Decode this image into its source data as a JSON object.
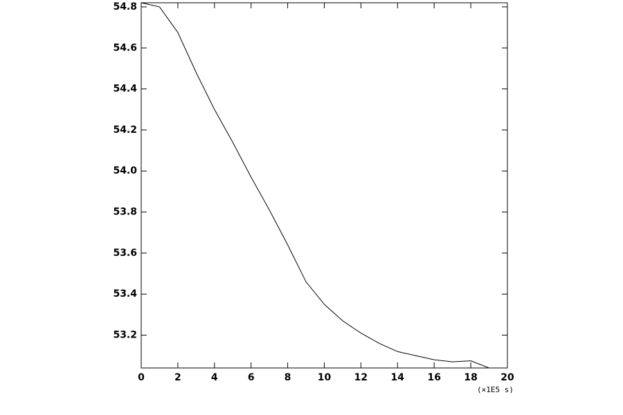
{
  "chart_data": {
    "type": "line",
    "x_label": "(×1E5 s)",
    "x": [
      0,
      1,
      2,
      3,
      4,
      5,
      6,
      7,
      8,
      9,
      10,
      11,
      12,
      13,
      14,
      15,
      16,
      17,
      18,
      19,
      19.6
    ],
    "series": [
      {
        "color": "#000000",
        "values": [
          54.82,
          54.8,
          54.675,
          54.48,
          54.3,
          54.14,
          53.97,
          53.81,
          53.64,
          53.46,
          53.35,
          53.27,
          53.21,
          53.16,
          53.12,
          53.1,
          53.08,
          53.07,
          53.075,
          53.04,
          53.04
        ]
      }
    ],
    "xlim": [
      0,
      20
    ],
    "ylim": [
      53.04,
      54.82
    ],
    "xticks": [
      0,
      2,
      4,
      6,
      8,
      10,
      12,
      14,
      16,
      18,
      20
    ],
    "yticks": [
      53.2,
      53.4,
      53.6,
      53.8,
      {
        "value": 54,
        "label": "54.0"
      },
      54.2,
      54.4,
      54.6,
      54.8
    ]
  }
}
